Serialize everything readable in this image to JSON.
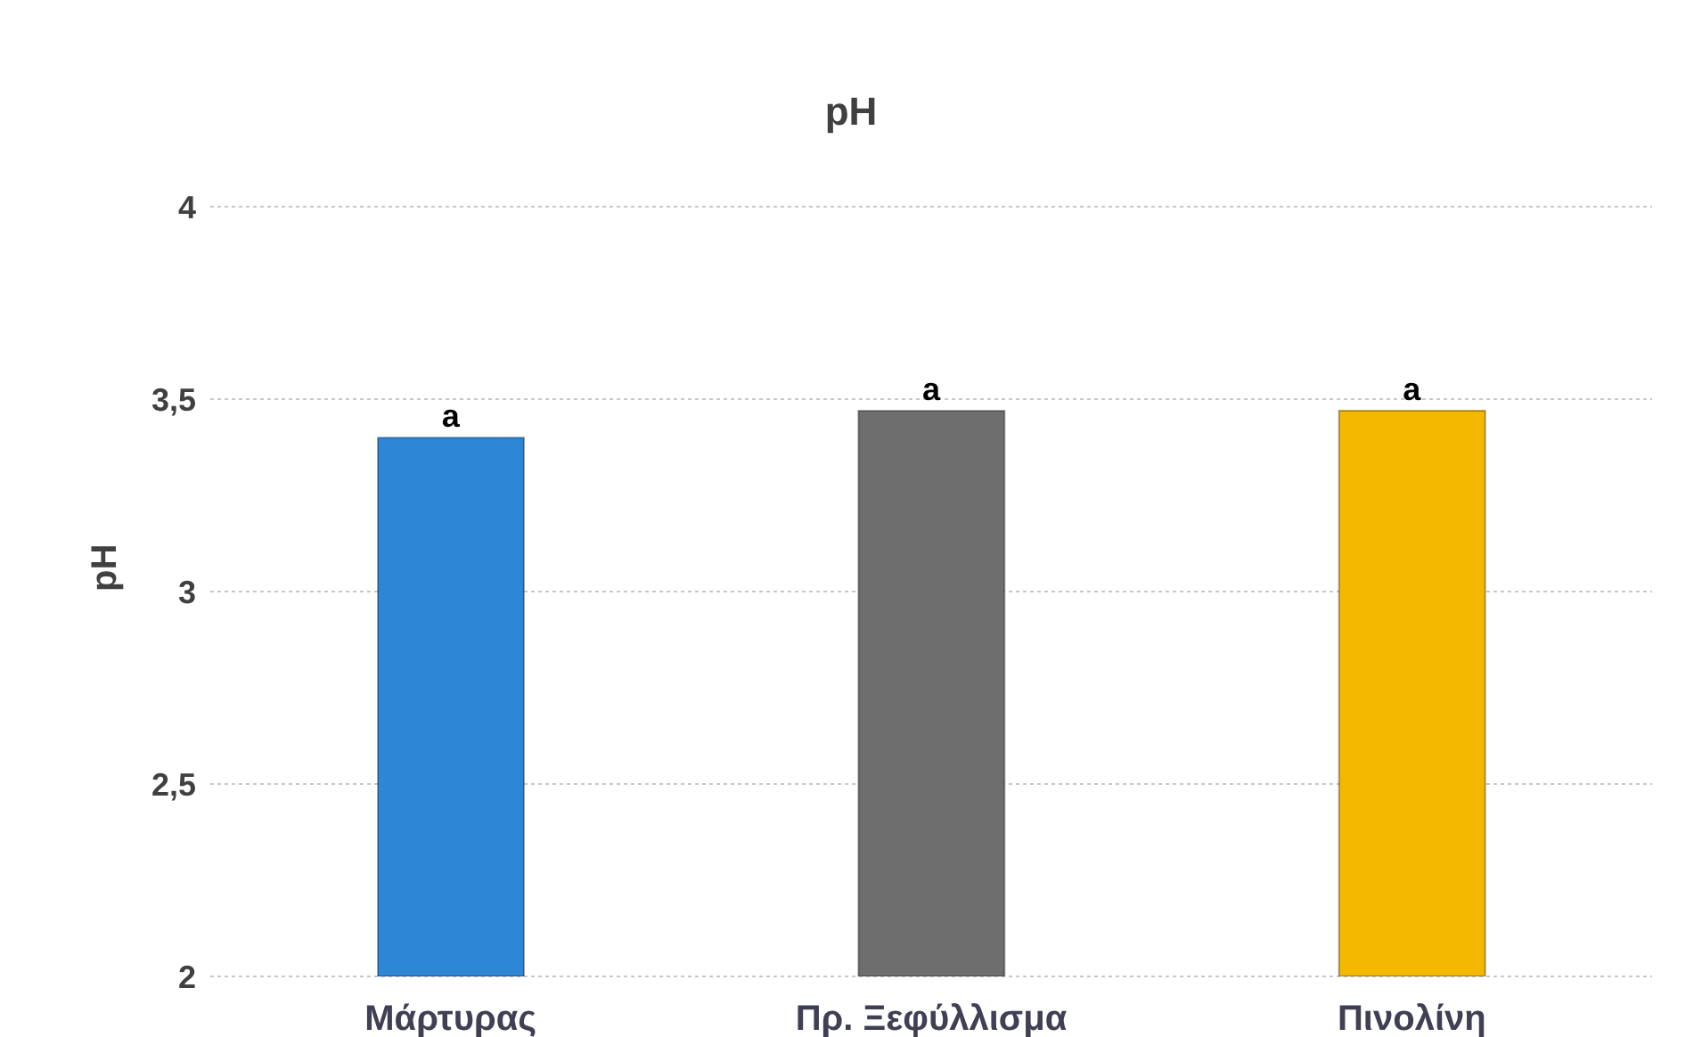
{
  "chart_data": {
    "type": "bar",
    "title": "pH",
    "ylabel": "pH",
    "categories": [
      "Μάρτυρας",
      "Πρ. Ξεφύλλισμα",
      "Πινολίνη"
    ],
    "values": [
      3.4,
      3.47,
      3.47
    ],
    "colors": [
      "#2e86d6",
      "#6e6e6e",
      "#f5b800"
    ],
    "ylim": [
      2,
      4
    ],
    "yticks": [
      {
        "value": 2,
        "label": "2"
      },
      {
        "value": 2.5,
        "label": "2,5"
      },
      {
        "value": 3,
        "label": "3"
      },
      {
        "value": 3.5,
        "label": "3,5"
      },
      {
        "value": 4,
        "label": "4"
      }
    ],
    "grid": "y",
    "annotations": [
      {
        "text": "a",
        "x": "Μάρτυρας",
        "y": 3.4
      },
      {
        "text": "a",
        "x": "Πρ. Ξεφύλλισμα",
        "y": 3.47
      },
      {
        "text": "a",
        "x": "Πινολίνη",
        "y": 3.47
      }
    ]
  }
}
